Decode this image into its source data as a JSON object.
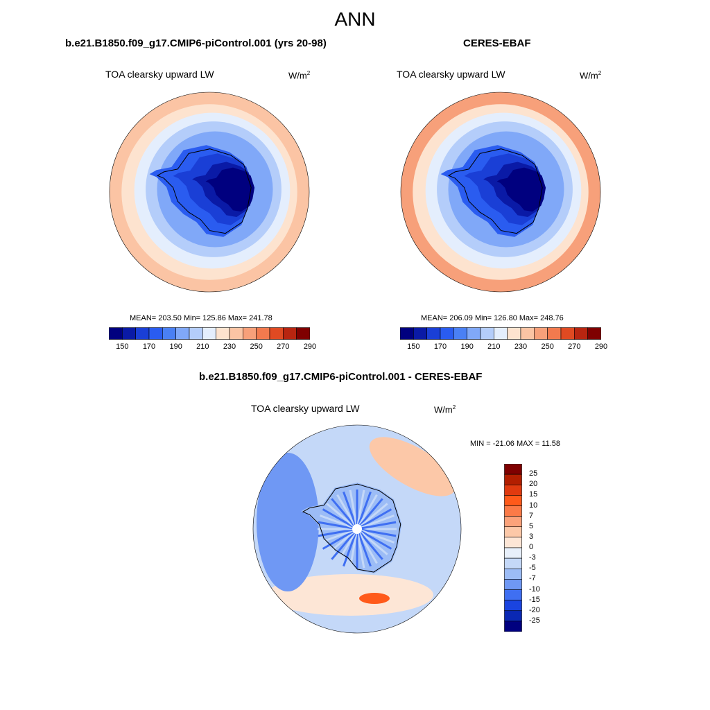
{
  "figure": {
    "season": "ANN",
    "panels": [
      {
        "id": "model",
        "title": "b.e21.B1850.f09_g17.CMIP6-piControl.001 (yrs 20-98)",
        "variable": "TOA clearsky upward LW",
        "units_base": "W/m",
        "units_exp": "2",
        "stats": "MEAN= 203.50  Min= 125.86  Max= 241.78",
        "colorbar_ticks": [
          "150",
          "170",
          "190",
          "210",
          "230",
          "250",
          "270",
          "290"
        ]
      },
      {
        "id": "obs",
        "title": "CERES-EBAF",
        "variable": "TOA clearsky upward LW",
        "units_base": "W/m",
        "units_exp": "2",
        "stats": "MEAN= 206.09  Min= 126.80  Max= 248.76",
        "colorbar_ticks": [
          "150",
          "170",
          "190",
          "210",
          "230",
          "250",
          "270",
          "290"
        ]
      },
      {
        "id": "diff",
        "title": "b.e21.B1850.f09_g17.CMIP6-piControl.001 - CERES-EBAF",
        "variable": "TOA clearsky upward LW",
        "units_base": "W/m",
        "units_exp": "2",
        "stats": "MIN = -21.06 MAX =  11.58",
        "colorbar_ticks": [
          "25",
          "20",
          "15",
          "10",
          "7",
          "5",
          "3",
          "0",
          "-3",
          "-5",
          "-7",
          "-10",
          "-15",
          "-20",
          "-25"
        ]
      }
    ],
    "colors": {
      "abs_scale": [
        "#00007f",
        "#0a1aa6",
        "#1a3fd6",
        "#2a5cf0",
        "#4a80f4",
        "#80a8f8",
        "#b4cdfa",
        "#e4eefd",
        "#fde3cf",
        "#fbc4a4",
        "#f7a07a",
        "#f27a4e",
        "#e04a22",
        "#b82510",
        "#7f0000"
      ],
      "diff_scale": [
        "#7f0000",
        "#b21e00",
        "#e03a0f",
        "#ff5a1a",
        "#fb7a47",
        "#fba27a",
        "#fcc8a8",
        "#fde6d6",
        "#e8f0fb",
        "#c4d8f8",
        "#9cbcf6",
        "#6f98f4",
        "#3f6ff2",
        "#1a44e0",
        "#0a28b4",
        "#00007f"
      ],
      "land_outline": "#000000"
    }
  }
}
